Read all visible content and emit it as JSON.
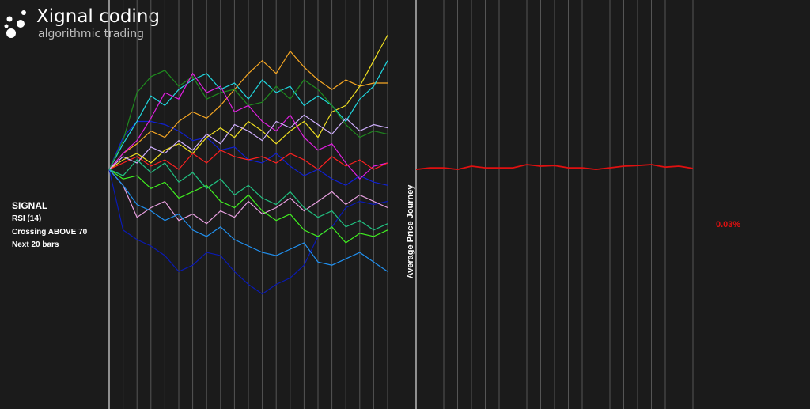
{
  "header": {
    "title": "Xignal coding",
    "subtitle": "algorithmic trading"
  },
  "signal": {
    "heading": "SIGNAL",
    "lines": [
      "RSI (14)",
      "Crossing ABOVE 70",
      "Next 20 bars"
    ]
  },
  "chart_data": [
    {
      "type": "line",
      "ylim": [
        -7.5,
        5.3
      ],
      "series": [
        {
          "color": "#0a1ab4",
          "values": [
            0,
            -1.9,
            -2.2,
            -2.4,
            -2.7,
            -3.2,
            -3.0,
            -2.6,
            -2.7,
            -3.2,
            -3.6,
            -3.9,
            -3.6,
            -3.4,
            -3.0,
            -2.1,
            -1.8,
            -1.2,
            -1.0,
            -1.1,
            -1.0
          ]
        },
        {
          "color": "#1020d0",
          "values": [
            0,
            1.0,
            1.5,
            1.5,
            1.4,
            1.2,
            0.9,
            1.0,
            0.6,
            0.7,
            0.3,
            0.2,
            0.5,
            0.1,
            -0.2,
            0.0,
            -0.3,
            -0.5,
            -0.2,
            -0.4,
            -0.5
          ]
        },
        {
          "color": "#f5a623",
          "values": [
            0,
            0.5,
            0.8,
            1.2,
            1.0,
            1.5,
            1.8,
            1.6,
            2.0,
            2.5,
            3.0,
            3.4,
            3.0,
            3.7,
            3.2,
            2.8,
            2.5,
            2.8,
            2.6,
            2.7,
            2.7
          ]
        },
        {
          "color": "#f0e020",
          "values": [
            0,
            0.3,
            0.5,
            0.2,
            0.6,
            0.8,
            0.5,
            1.0,
            1.3,
            1.0,
            1.5,
            1.2,
            0.8,
            1.2,
            1.5,
            1.0,
            1.8,
            2.0,
            2.6,
            3.4,
            4.2
          ]
        },
        {
          "color": "#20d8e0",
          "values": [
            0,
            0.8,
            1.5,
            2.3,
            2.0,
            2.5,
            2.8,
            3.0,
            2.5,
            2.7,
            2.2,
            2.8,
            2.4,
            2.6,
            2.0,
            2.3,
            2.0,
            1.5,
            2.2,
            2.6,
            3.4
          ]
        },
        {
          "color": "#1f8a1f",
          "values": [
            0,
            0.9,
            2.4,
            2.9,
            3.1,
            2.6,
            2.9,
            2.2,
            2.4,
            2.5,
            2.0,
            2.1,
            2.6,
            2.2,
            2.8,
            2.5,
            2.0,
            1.4,
            1.0,
            1.2,
            1.1
          ]
        },
        {
          "color": "#e020e0",
          "values": [
            0,
            0.5,
            0.9,
            1.6,
            2.4,
            2.2,
            3.0,
            2.4,
            2.6,
            1.8,
            2.0,
            1.5,
            1.2,
            1.7,
            1.0,
            0.6,
            0.8,
            0.2,
            -0.3,
            0.1,
            0.2
          ]
        },
        {
          "color": "#e8a0e0",
          "values": [
            0,
            -0.5,
            -1.5,
            -1.2,
            -1.0,
            -1.6,
            -1.4,
            -1.7,
            -1.3,
            -1.5,
            -1.0,
            -1.4,
            -1.2,
            -0.9,
            -1.3,
            -1.0,
            -0.7,
            -1.1,
            -0.8,
            -1.0,
            -1.2
          ]
        },
        {
          "color": "#40f020",
          "values": [
            0,
            -0.3,
            -0.2,
            -0.6,
            -0.4,
            -0.9,
            -0.7,
            -0.5,
            -1.0,
            -1.2,
            -0.8,
            -1.3,
            -1.6,
            -1.4,
            -1.9,
            -2.1,
            -1.8,
            -2.3,
            -2.0,
            -2.1,
            -1.9
          ]
        },
        {
          "color": "#ff2020",
          "values": [
            0,
            0.2,
            0.4,
            0.1,
            0.3,
            0.0,
            0.5,
            0.2,
            0.6,
            0.4,
            0.3,
            0.4,
            0.2,
            0.5,
            0.3,
            0.0,
            0.4,
            0.1,
            0.3,
            0.0,
            0.2
          ]
        },
        {
          "color": "#2090f0",
          "values": [
            0,
            -0.5,
            -1.1,
            -1.3,
            -1.6,
            -1.4,
            -1.9,
            -2.1,
            -1.8,
            -2.2,
            -2.4,
            -2.6,
            -2.7,
            -2.5,
            -2.3,
            -2.9,
            -3.0,
            -2.8,
            -2.6,
            -2.9,
            -3.2
          ]
        },
        {
          "color": "#d0b0ff",
          "values": [
            0,
            0.4,
            0.2,
            0.7,
            0.5,
            0.9,
            0.6,
            1.1,
            0.8,
            1.4,
            1.2,
            0.9,
            1.5,
            1.3,
            1.7,
            1.4,
            1.1,
            1.6,
            1.2,
            1.4,
            1.3
          ]
        },
        {
          "color": "#20c080",
          "values": [
            0,
            -0.2,
            0.3,
            -0.1,
            0.2,
            -0.4,
            -0.1,
            -0.6,
            -0.3,
            -0.8,
            -0.5,
            -0.9,
            -1.1,
            -0.7,
            -1.2,
            -1.5,
            -1.3,
            -1.8,
            -1.6,
            -1.9,
            -1.7
          ]
        }
      ]
    },
    {
      "type": "line",
      "title": "Average Price Journey",
      "ylim": [
        -7.5,
        5.3
      ],
      "series": [
        {
          "color": "#e01010",
          "values": [
            0,
            0.05,
            0.05,
            0,
            0.1,
            0.05,
            0.05,
            0.05,
            0.15,
            0.1,
            0.12,
            0.05,
            0.05,
            0,
            0.05,
            0.1,
            0.12,
            0.15,
            0.07,
            0.1,
            0.03
          ],
          "value_labels": [
            null,
            null,
            null,
            null,
            null,
            null,
            null,
            null,
            null,
            null,
            null,
            null,
            null,
            null,
            null,
            null,
            null,
            null,
            null,
            null,
            "0.03%"
          ]
        }
      ]
    }
  ]
}
